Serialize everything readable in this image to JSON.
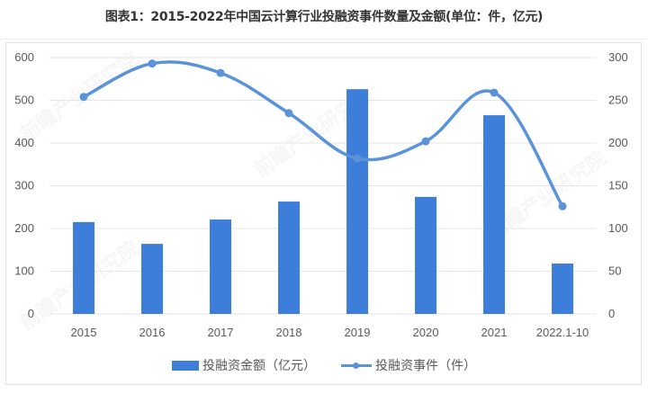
{
  "title": "图表1：2015-2022年中国云计算行业投融资事件数量及金额(单位：件，亿元)",
  "watermark": "前瞻产业研究院",
  "colors": {
    "bar": "#3d7edb",
    "line": "#5b93db",
    "grid": "#e6e6e6",
    "text": "#595959"
  },
  "legend": {
    "bar_label": "投融资金额（亿元）",
    "line_label": "投融资事件（件）"
  },
  "chart_data": {
    "type": "bar+line",
    "title": "图表1：2015-2022年中国云计算行业投融资事件数量及金额(单位：件，亿元)",
    "categories": [
      "2015",
      "2016",
      "2017",
      "2018",
      "2019",
      "2020",
      "2021",
      "2022.1-10"
    ],
    "series": [
      {
        "name": "投融资金额（亿元）",
        "type": "bar",
        "axis": "left",
        "values": [
          215,
          164,
          221,
          263,
          526,
          274,
          465,
          118
        ]
      },
      {
        "name": "投融资事件（件）",
        "type": "line",
        "axis": "right",
        "smooth": true,
        "values": [
          254,
          293,
          282,
          235,
          182,
          202,
          259,
          126
        ]
      }
    ],
    "left_axis": {
      "ylim": [
        0,
        600
      ],
      "ticks": [
        "0",
        "100",
        "200",
        "300",
        "400",
        "500",
        "600"
      ]
    },
    "right_axis": {
      "ylim": [
        0,
        300
      ],
      "ticks": [
        "0",
        "50",
        "100",
        "150",
        "200",
        "250",
        "300"
      ]
    },
    "xlabel": "",
    "ylabel": "",
    "grid": true,
    "legend_position": "bottom"
  }
}
